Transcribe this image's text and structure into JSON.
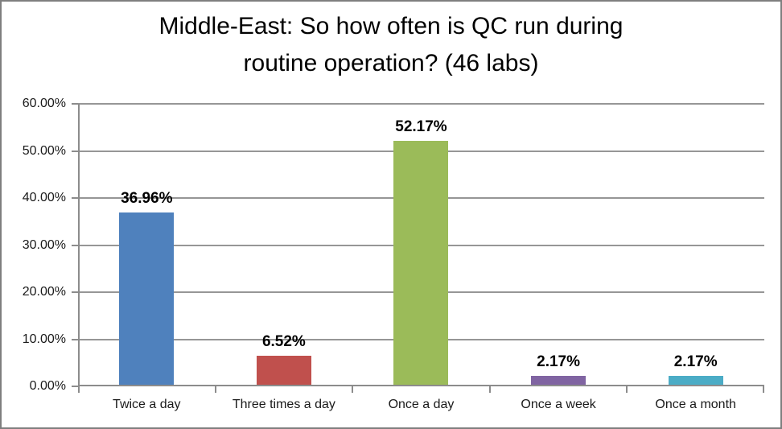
{
  "chart_data": {
    "type": "bar",
    "title": "Middle-East: So how often is QC run during routine operation? (46 labs)",
    "title_lines": [
      "Middle-East: So how often is QC run during",
      "routine operation? (46 labs)"
    ],
    "categories": [
      "Twice a day",
      "Three times a day",
      "Once a day",
      "Once a week",
      "Once a month"
    ],
    "values": [
      36.96,
      6.52,
      52.17,
      2.17,
      2.17
    ],
    "value_labels": [
      "36.96%",
      "6.52%",
      "52.17%",
      "2.17%",
      "2.17%"
    ],
    "bar_colors": [
      "#4F81BD",
      "#C0504D",
      "#9BBB59",
      "#8064A2",
      "#4BACC6"
    ],
    "xlabel": "",
    "ylabel": "",
    "ylim": [
      0,
      60
    ],
    "yticks": [
      0,
      10,
      20,
      30,
      40,
      50,
      60
    ],
    "yticklabels": [
      "0.00%",
      "10.00%",
      "20.00%",
      "30.00%",
      "40.00%",
      "50.00%",
      "60.00%"
    ],
    "grid": "horizontal",
    "legend": "none",
    "styles": {
      "gridline_color": "#969696",
      "axis_color": "#8C8C8C",
      "frame_border_color": "#7F7F7F",
      "background": "#FFFFFF",
      "text_color": "#000000"
    }
  }
}
